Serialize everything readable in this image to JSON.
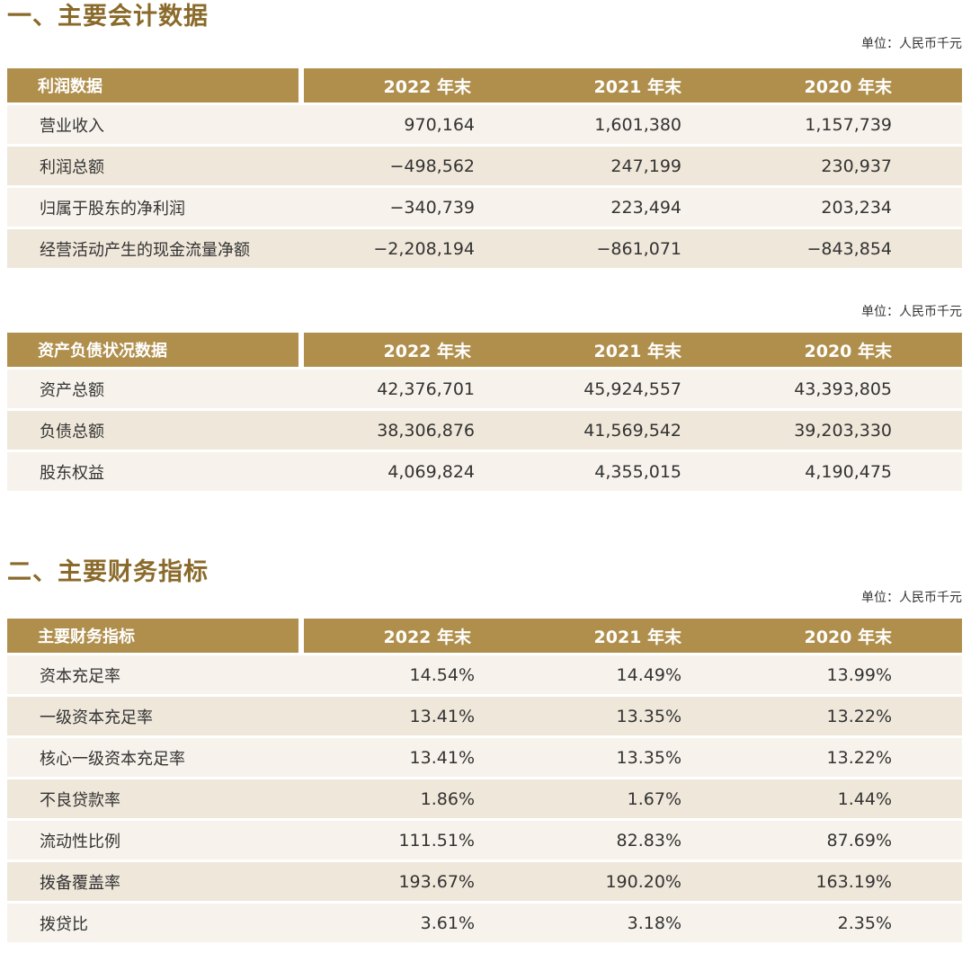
{
  "sections": {
    "accounting_title": "一、主要会计数据",
    "indicators_title": "二、主要财务指标"
  },
  "unit_label": "单位：人民币千元",
  "profit": {
    "headers": [
      "利润数据",
      "2022 年末",
      "2021 年末",
      "2020 年末"
    ],
    "rows": [
      [
        "营业收入",
        "970,164",
        "1,601,380",
        "1,157,739"
      ],
      [
        "利润总额",
        "−498,562",
        "247,199",
        "230,937"
      ],
      [
        "归属于股东的净利润",
        "−340,739",
        "223,494",
        "203,234"
      ],
      [
        "经营活动产生的现金流量净额",
        "−2,208,194",
        "−861,071",
        "−843,854"
      ]
    ]
  },
  "balance": {
    "headers": [
      "资产负债状况数据",
      "2022 年末",
      "2021 年末",
      "2020 年末"
    ],
    "rows": [
      [
        "资产总额",
        "42,376,701",
        "45,924,557",
        "43,393,805"
      ],
      [
        "负债总额",
        "38,306,876",
        "41,569,542",
        "39,203,330"
      ],
      [
        "股东权益",
        "4,069,824",
        "4,355,015",
        "4,190,475"
      ]
    ]
  },
  "indicators": {
    "headers": [
      "主要财务指标",
      "2022 年末",
      "2021 年末",
      "2020 年末"
    ],
    "rows": [
      [
        "资本充足率",
        "14.54%",
        "14.49%",
        "13.99%"
      ],
      [
        "一级资本充足率",
        "13.41%",
        "13.35%",
        "13.22%"
      ],
      [
        "核心一级资本充足率",
        "13.41%",
        "13.35%",
        "13.22%"
      ],
      [
        "不良贷款率",
        "1.86%",
        "1.67%",
        "1.44%"
      ],
      [
        "流动性比例",
        "111.51%",
        "82.83%",
        "87.69%"
      ],
      [
        "拨备覆盖率",
        "193.67%",
        "190.20%",
        "163.19%"
      ],
      [
        "拨贷比",
        "3.61%",
        "3.18%",
        "2.35%"
      ]
    ]
  },
  "colors": {
    "title": "#8a6a2a",
    "header_bg": "#b08f4c",
    "row_light": "#f7f3ec",
    "row_dark": "#efe7da"
  }
}
